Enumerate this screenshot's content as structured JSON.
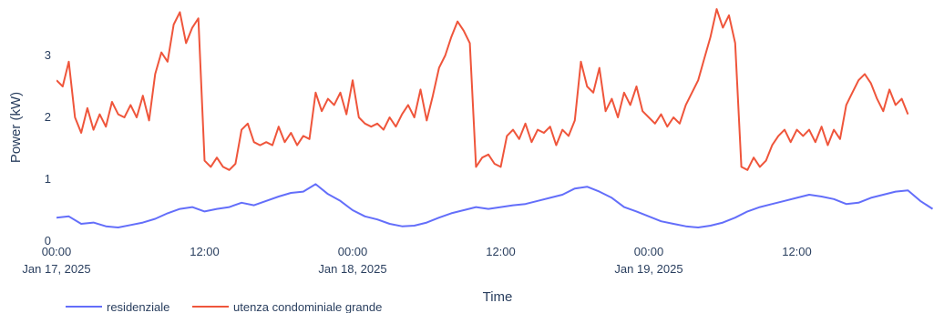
{
  "chart_data": {
    "type": "line",
    "xlabel": "Time",
    "ylabel": "Power (kW)",
    "x_range": [
      "2025-01-17T00:00",
      "2025-01-19T23:45"
    ],
    "ylim": [
      0,
      3.7
    ],
    "grid": false,
    "legend_placement": "bottom-left",
    "y_ticks": [
      {
        "value": 0,
        "label": "0"
      },
      {
        "value": 1,
        "label": "1"
      },
      {
        "value": 2,
        "label": "2"
      },
      {
        "value": 3,
        "label": "3"
      }
    ],
    "x_ticks": [
      {
        "at": "2025-01-17T00:00",
        "line1": "00:00",
        "line2": "Jan 17, 2025"
      },
      {
        "at": "2025-01-17T12:00",
        "line1": "12:00",
        "line2": ""
      },
      {
        "at": "2025-01-18T00:00",
        "line1": "00:00",
        "line2": "Jan 18, 2025"
      },
      {
        "at": "2025-01-18T12:00",
        "line1": "12:00",
        "line2": ""
      },
      {
        "at": "2025-01-19T00:00",
        "line1": "00:00",
        "line2": "Jan 19, 2025"
      },
      {
        "at": "2025-01-19T12:00",
        "line1": "12:00",
        "line2": ""
      }
    ],
    "series": [
      {
        "name": "residenziale",
        "color": "#636efa",
        "points": [
          [
            "2025-01-17T00:00",
            0.38
          ],
          [
            "2025-01-17T01:00",
            0.4
          ],
          [
            "2025-01-17T02:00",
            0.28
          ],
          [
            "2025-01-17T03:00",
            0.3
          ],
          [
            "2025-01-17T04:00",
            0.24
          ],
          [
            "2025-01-17T05:00",
            0.22
          ],
          [
            "2025-01-17T06:00",
            0.26
          ],
          [
            "2025-01-17T07:00",
            0.3
          ],
          [
            "2025-01-17T08:00",
            0.36
          ],
          [
            "2025-01-17T09:00",
            0.45
          ],
          [
            "2025-01-17T10:00",
            0.52
          ],
          [
            "2025-01-17T11:00",
            0.55
          ],
          [
            "2025-01-17T12:00",
            0.48
          ],
          [
            "2025-01-17T13:00",
            0.52
          ],
          [
            "2025-01-17T14:00",
            0.55
          ],
          [
            "2025-01-17T15:00",
            0.62
          ],
          [
            "2025-01-17T16:00",
            0.58
          ],
          [
            "2025-01-17T17:00",
            0.65
          ],
          [
            "2025-01-17T18:00",
            0.72
          ],
          [
            "2025-01-17T19:00",
            0.78
          ],
          [
            "2025-01-17T20:00",
            0.8
          ],
          [
            "2025-01-17T21:00",
            0.92
          ],
          [
            "2025-01-17T22:00",
            0.76
          ],
          [
            "2025-01-17T23:00",
            0.65
          ],
          [
            "2025-01-18T00:00",
            0.5
          ],
          [
            "2025-01-18T01:00",
            0.4
          ],
          [
            "2025-01-18T02:00",
            0.35
          ],
          [
            "2025-01-18T03:00",
            0.28
          ],
          [
            "2025-01-18T04:00",
            0.24
          ],
          [
            "2025-01-18T05:00",
            0.25
          ],
          [
            "2025-01-18T06:00",
            0.3
          ],
          [
            "2025-01-18T07:00",
            0.38
          ],
          [
            "2025-01-18T08:00",
            0.45
          ],
          [
            "2025-01-18T09:00",
            0.5
          ],
          [
            "2025-01-18T10:00",
            0.55
          ],
          [
            "2025-01-18T11:00",
            0.52
          ],
          [
            "2025-01-18T12:00",
            0.55
          ],
          [
            "2025-01-18T13:00",
            0.58
          ],
          [
            "2025-01-18T14:00",
            0.6
          ],
          [
            "2025-01-18T15:00",
            0.65
          ],
          [
            "2025-01-18T16:00",
            0.7
          ],
          [
            "2025-01-18T17:00",
            0.75
          ],
          [
            "2025-01-18T18:00",
            0.85
          ],
          [
            "2025-01-18T19:00",
            0.88
          ],
          [
            "2025-01-18T20:00",
            0.8
          ],
          [
            "2025-01-18T21:00",
            0.7
          ],
          [
            "2025-01-18T22:00",
            0.55
          ],
          [
            "2025-01-18T23:00",
            0.48
          ],
          [
            "2025-01-19T00:00",
            0.4
          ],
          [
            "2025-01-19T01:00",
            0.32
          ],
          [
            "2025-01-19T02:00",
            0.28
          ],
          [
            "2025-01-19T03:00",
            0.24
          ],
          [
            "2025-01-19T04:00",
            0.22
          ],
          [
            "2025-01-19T05:00",
            0.25
          ],
          [
            "2025-01-19T06:00",
            0.3
          ],
          [
            "2025-01-19T07:00",
            0.38
          ],
          [
            "2025-01-19T08:00",
            0.48
          ],
          [
            "2025-01-19T09:00",
            0.55
          ],
          [
            "2025-01-19T10:00",
            0.6
          ],
          [
            "2025-01-19T11:00",
            0.65
          ],
          [
            "2025-01-19T12:00",
            0.7
          ],
          [
            "2025-01-19T13:00",
            0.75
          ],
          [
            "2025-01-19T14:00",
            0.72
          ],
          [
            "2025-01-19T15:00",
            0.68
          ],
          [
            "2025-01-19T16:00",
            0.6
          ],
          [
            "2025-01-19T17:00",
            0.62
          ],
          [
            "2025-01-19T18:00",
            0.7
          ],
          [
            "2025-01-19T19:00",
            0.75
          ],
          [
            "2025-01-19T20:00",
            0.8
          ],
          [
            "2025-01-19T21:00",
            0.82
          ],
          [
            "2025-01-19T22:00",
            0.65
          ],
          [
            "2025-01-19T23:00",
            0.52
          ]
        ]
      },
      {
        "name": "utenza condominiale grande",
        "color": "#ef553b",
        "points": [
          [
            "2025-01-17T00:00",
            2.6
          ],
          [
            "2025-01-17T00:30",
            2.5
          ],
          [
            "2025-01-17T01:00",
            2.9
          ],
          [
            "2025-01-17T01:30",
            2.0
          ],
          [
            "2025-01-17T02:00",
            1.75
          ],
          [
            "2025-01-17T02:30",
            2.15
          ],
          [
            "2025-01-17T03:00",
            1.8
          ],
          [
            "2025-01-17T03:30",
            2.05
          ],
          [
            "2025-01-17T04:00",
            1.85
          ],
          [
            "2025-01-17T04:30",
            2.25
          ],
          [
            "2025-01-17T05:00",
            2.05
          ],
          [
            "2025-01-17T05:30",
            2.0
          ],
          [
            "2025-01-17T06:00",
            2.2
          ],
          [
            "2025-01-17T06:30",
            2.0
          ],
          [
            "2025-01-17T07:00",
            2.35
          ],
          [
            "2025-01-17T07:30",
            1.95
          ],
          [
            "2025-01-17T08:00",
            2.7
          ],
          [
            "2025-01-17T08:30",
            3.05
          ],
          [
            "2025-01-17T09:00",
            2.9
          ],
          [
            "2025-01-17T09:30",
            3.5
          ],
          [
            "2025-01-17T10:00",
            3.7
          ],
          [
            "2025-01-17T10:30",
            3.2
          ],
          [
            "2025-01-17T11:00",
            3.45
          ],
          [
            "2025-01-17T11:30",
            3.6
          ],
          [
            "2025-01-17T12:00",
            1.3
          ],
          [
            "2025-01-17T12:30",
            1.2
          ],
          [
            "2025-01-17T13:00",
            1.35
          ],
          [
            "2025-01-17T13:30",
            1.2
          ],
          [
            "2025-01-17T14:00",
            1.15
          ],
          [
            "2025-01-17T14:30",
            1.25
          ],
          [
            "2025-01-17T15:00",
            1.8
          ],
          [
            "2025-01-17T15:30",
            1.9
          ],
          [
            "2025-01-17T16:00",
            1.6
          ],
          [
            "2025-01-17T16:30",
            1.55
          ],
          [
            "2025-01-17T17:00",
            1.6
          ],
          [
            "2025-01-17T17:30",
            1.55
          ],
          [
            "2025-01-17T18:00",
            1.85
          ],
          [
            "2025-01-17T18:30",
            1.6
          ],
          [
            "2025-01-17T19:00",
            1.75
          ],
          [
            "2025-01-17T19:30",
            1.55
          ],
          [
            "2025-01-17T20:00",
            1.7
          ],
          [
            "2025-01-17T20:30",
            1.65
          ],
          [
            "2025-01-17T21:00",
            2.4
          ],
          [
            "2025-01-17T21:30",
            2.1
          ],
          [
            "2025-01-17T22:00",
            2.3
          ],
          [
            "2025-01-17T22:30",
            2.2
          ],
          [
            "2025-01-17T23:00",
            2.4
          ],
          [
            "2025-01-17T23:30",
            2.05
          ],
          [
            "2025-01-18T00:00",
            2.6
          ],
          [
            "2025-01-18T00:30",
            2.0
          ],
          [
            "2025-01-18T01:00",
            1.9
          ],
          [
            "2025-01-18T01:30",
            1.85
          ],
          [
            "2025-01-18T02:00",
            1.9
          ],
          [
            "2025-01-18T02:30",
            1.8
          ],
          [
            "2025-01-18T03:00",
            2.0
          ],
          [
            "2025-01-18T03:30",
            1.85
          ],
          [
            "2025-01-18T04:00",
            2.05
          ],
          [
            "2025-01-18T04:30",
            2.2
          ],
          [
            "2025-01-18T05:00",
            2.0
          ],
          [
            "2025-01-18T05:30",
            2.45
          ],
          [
            "2025-01-18T06:00",
            1.95
          ],
          [
            "2025-01-18T06:30",
            2.35
          ],
          [
            "2025-01-18T07:00",
            2.8
          ],
          [
            "2025-01-18T07:30",
            3.0
          ],
          [
            "2025-01-18T08:00",
            3.3
          ],
          [
            "2025-01-18T08:30",
            3.55
          ],
          [
            "2025-01-18T09:00",
            3.4
          ],
          [
            "2025-01-18T09:30",
            3.2
          ],
          [
            "2025-01-18T10:00",
            1.2
          ],
          [
            "2025-01-18T10:30",
            1.35
          ],
          [
            "2025-01-18T11:00",
            1.4
          ],
          [
            "2025-01-18T11:30",
            1.25
          ],
          [
            "2025-01-18T12:00",
            1.2
          ],
          [
            "2025-01-18T12:30",
            1.7
          ],
          [
            "2025-01-18T13:00",
            1.8
          ],
          [
            "2025-01-18T13:30",
            1.65
          ],
          [
            "2025-01-18T14:00",
            1.9
          ],
          [
            "2025-01-18T14:30",
            1.6
          ],
          [
            "2025-01-18T15:00",
            1.8
          ],
          [
            "2025-01-18T15:30",
            1.75
          ],
          [
            "2025-01-18T16:00",
            1.85
          ],
          [
            "2025-01-18T16:30",
            1.55
          ],
          [
            "2025-01-18T17:00",
            1.8
          ],
          [
            "2025-01-18T17:30",
            1.7
          ],
          [
            "2025-01-18T18:00",
            1.95
          ],
          [
            "2025-01-18T18:30",
            2.9
          ],
          [
            "2025-01-18T19:00",
            2.5
          ],
          [
            "2025-01-18T19:30",
            2.4
          ],
          [
            "2025-01-18T20:00",
            2.8
          ],
          [
            "2025-01-18T20:30",
            2.1
          ],
          [
            "2025-01-18T21:00",
            2.3
          ],
          [
            "2025-01-18T21:30",
            2.0
          ],
          [
            "2025-01-18T22:00",
            2.4
          ],
          [
            "2025-01-18T22:30",
            2.2
          ],
          [
            "2025-01-18T23:00",
            2.5
          ],
          [
            "2025-01-18T23:30",
            2.1
          ],
          [
            "2025-01-19T00:00",
            2.0
          ],
          [
            "2025-01-19T00:30",
            1.9
          ],
          [
            "2025-01-19T01:00",
            2.05
          ],
          [
            "2025-01-19T01:30",
            1.85
          ],
          [
            "2025-01-19T02:00",
            2.0
          ],
          [
            "2025-01-19T02:30",
            1.9
          ],
          [
            "2025-01-19T03:00",
            2.2
          ],
          [
            "2025-01-19T03:30",
            2.4
          ],
          [
            "2025-01-19T04:00",
            2.6
          ],
          [
            "2025-01-19T04:30",
            2.95
          ],
          [
            "2025-01-19T05:00",
            3.3
          ],
          [
            "2025-01-19T05:30",
            3.75
          ],
          [
            "2025-01-19T06:00",
            3.45
          ],
          [
            "2025-01-19T06:30",
            3.65
          ],
          [
            "2025-01-19T07:00",
            3.2
          ],
          [
            "2025-01-19T07:30",
            1.2
          ],
          [
            "2025-01-19T08:00",
            1.15
          ],
          [
            "2025-01-19T08:30",
            1.35
          ],
          [
            "2025-01-19T09:00",
            1.2
          ],
          [
            "2025-01-19T09:30",
            1.3
          ],
          [
            "2025-01-19T10:00",
            1.55
          ],
          [
            "2025-01-19T10:30",
            1.7
          ],
          [
            "2025-01-19T11:00",
            1.8
          ],
          [
            "2025-01-19T11:30",
            1.6
          ],
          [
            "2025-01-19T12:00",
            1.8
          ],
          [
            "2025-01-19T12:30",
            1.7
          ],
          [
            "2025-01-19T13:00",
            1.8
          ],
          [
            "2025-01-19T13:30",
            1.6
          ],
          [
            "2025-01-19T14:00",
            1.85
          ],
          [
            "2025-01-19T14:30",
            1.55
          ],
          [
            "2025-01-19T15:00",
            1.8
          ],
          [
            "2025-01-19T15:30",
            1.65
          ],
          [
            "2025-01-19T16:00",
            2.2
          ],
          [
            "2025-01-19T16:30",
            2.4
          ],
          [
            "2025-01-19T17:00",
            2.6
          ],
          [
            "2025-01-19T17:30",
            2.7
          ],
          [
            "2025-01-19T18:00",
            2.55
          ],
          [
            "2025-01-19T18:30",
            2.3
          ],
          [
            "2025-01-19T19:00",
            2.1
          ],
          [
            "2025-01-19T19:30",
            2.45
          ],
          [
            "2025-01-19T20:00",
            2.2
          ],
          [
            "2025-01-19T20:30",
            2.3
          ],
          [
            "2025-01-19T21:00",
            2.05
          ]
        ]
      }
    ]
  }
}
